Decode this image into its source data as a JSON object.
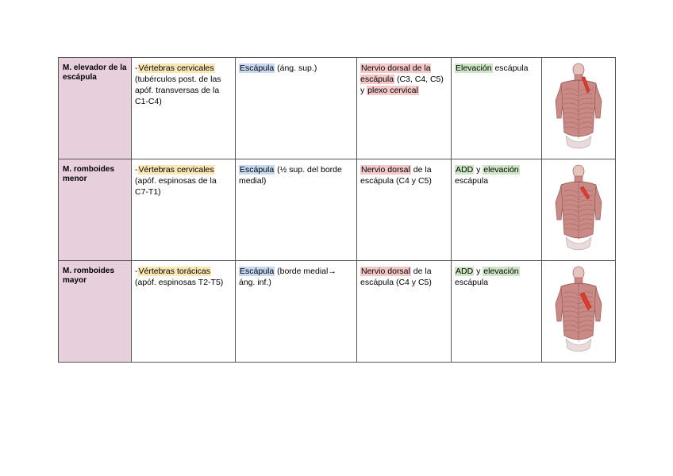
{
  "rows": [
    {
      "name": "M. elevador de la escápula",
      "origin": [
        {
          "t": "-"
        },
        {
          "t": "Vértebras cervicales",
          "hl": "yellow"
        },
        {
          "t": " (tubérculos post. de las apóf. transversas de la C1-C4)"
        }
      ],
      "insertion": [
        {
          "t": "Escápula",
          "hl": "blue"
        },
        {
          "t": " (áng. sup.)"
        }
      ],
      "nerve": [
        {
          "t": "Nervio dorsal de la escápula",
          "hl": "pink"
        },
        {
          "t": " (C3, C4, C5) y "
        },
        {
          "t": "plexo cervical",
          "hl": "pink"
        }
      ],
      "action": [
        {
          "t": "Elevación",
          "hl": "green"
        },
        {
          "t": " escápula"
        }
      ],
      "image": "back-muscles-levator-scapulae",
      "highlight_color": "#e03a2f"
    },
    {
      "name": "M. romboides menor",
      "origin": [
        {
          "t": "-"
        },
        {
          "t": "Vértebras cervicales",
          "hl": "yellow"
        },
        {
          "t": " (apóf. espinosas de la C7-T1)"
        }
      ],
      "insertion": [
        {
          "t": "Escápula",
          "hl": "blue"
        },
        {
          "t": " (½ sup. del borde medial)"
        }
      ],
      "nerve": [
        {
          "t": "Nervio dorsal",
          "hl": "pink"
        },
        {
          "t": " de la escápula (C4 y C5)"
        }
      ],
      "action": [
        {
          "t": "ADD",
          "hl": "green"
        },
        {
          "t": " y "
        },
        {
          "t": "elevación",
          "hl": "green"
        },
        {
          "t": " escápula"
        }
      ],
      "image": "back-muscles-rhomboid-minor",
      "highlight_color": "#e03a2f"
    },
    {
      "name": "M. romboides mayor",
      "origin": [
        {
          "t": "-"
        },
        {
          "t": "Vértebras torácicas",
          "hl": "yellow"
        },
        {
          "t": " (apóf. espinosas T2-T5)"
        }
      ],
      "insertion": [
        {
          "t": "Escápula",
          "hl": "blue"
        },
        {
          "t": " (borde medial→ áng. inf.)"
        }
      ],
      "nerve": [
        {
          "t": "Nervio dorsal",
          "hl": "pink"
        },
        {
          "t": " de la escápula (C4 y C5)"
        }
      ],
      "action": [
        {
          "t": "ADD",
          "hl": "green"
        },
        {
          "t": " y "
        },
        {
          "t": "elevación",
          "hl": "green"
        },
        {
          "t": " escápula"
        }
      ],
      "image": "back-muscles-rhomboid-major",
      "highlight_color": "#e03a2f"
    }
  ],
  "colors": {
    "name_cell": "#e8cfdc",
    "yellow": "#fbe7b4",
    "blue": "#c7d9f2",
    "pink": "#f4c8c8",
    "green": "#cfe6c6",
    "muscle": "#c98a86",
    "muscle_dark": "#8a4a48"
  }
}
